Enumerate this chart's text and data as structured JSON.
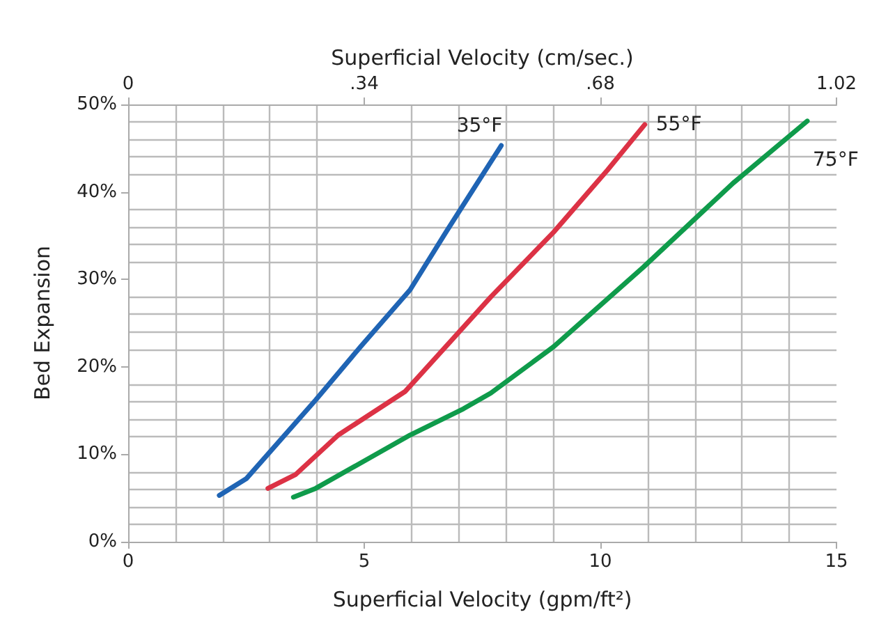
{
  "chart_data": {
    "type": "line",
    "xlabel": "Superficial Velocity (gpm/ft²)",
    "ylabel": "Bed Expansion",
    "x2label": "Superficial Velocity (cm/sec.)",
    "xlim": [
      0,
      15
    ],
    "xticks": [
      0,
      5,
      10,
      15
    ],
    "x2lim": [
      0,
      1.02
    ],
    "x2ticks": [
      0,
      {
        "value": 0.34,
        "label": ".34"
      },
      {
        "value": 0.68,
        "label": ".68"
      },
      1.02
    ],
    "ylim": [
      0,
      50
    ],
    "yticks": [
      {
        "value": 0,
        "label": "0%"
      },
      {
        "value": 10,
        "label": "10%"
      },
      {
        "value": 20,
        "label": "20%"
      },
      {
        "value": 30,
        "label": "30%"
      },
      {
        "value": 40,
        "label": "40%"
      },
      {
        "value": 50,
        "label": "50%"
      }
    ],
    "grid": true,
    "legend": false,
    "marker": "none",
    "line_style": "solid",
    "series": [
      {
        "name": "35°F",
        "color": "#1f64b4",
        "x": [
          1.93,
          2.5,
          3.97,
          4.92,
          5.97,
          6.73,
          7.9
        ],
        "values": [
          5.3,
          7.2,
          16.2,
          22.3,
          28.8,
          35.4,
          45.3
        ]
      },
      {
        "name": "55°F",
        "color": "#dc3245",
        "x": [
          2.96,
          3.55,
          4.45,
          5.87,
          7.68,
          9.01,
          10.15,
          10.94
        ],
        "values": [
          6.1,
          7.7,
          12.2,
          17.2,
          28.0,
          35.4,
          42.5,
          47.7
        ]
      },
      {
        "name": "75°F",
        "color": "#0f9b4b",
        "x": [
          3.5,
          3.97,
          5.97,
          7.1,
          7.68,
          9.01,
          10.91,
          12.81,
          14.38
        ],
        "values": [
          5.1,
          6.1,
          12.2,
          15.2,
          17.0,
          22.3,
          31.4,
          41.0,
          48.1
        ]
      }
    ]
  }
}
